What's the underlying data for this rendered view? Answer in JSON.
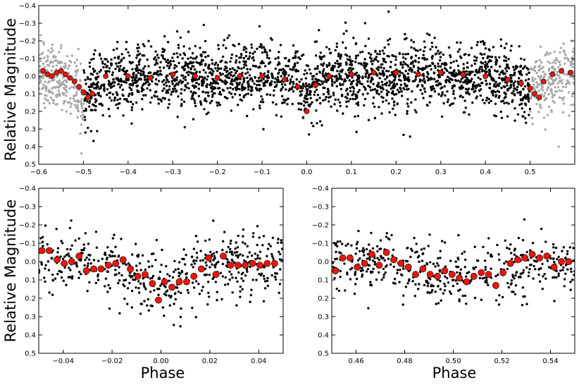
{
  "figure": {
    "ylabel": "Relative Magnitude",
    "xlabel": "Phase"
  },
  "colors": {
    "points": "#000000",
    "wrapped_points": "#a8a8a8",
    "binned": "#e8160c"
  },
  "chart_data": [
    {
      "type": "scatter",
      "name": "full-phase",
      "xlim": [
        -0.6,
        0.6
      ],
      "ylim": [
        0.5,
        -0.4
      ],
      "xticks": [
        -0.6,
        -0.5,
        -0.4,
        -0.3,
        -0.2,
        -0.1,
        0.0,
        0.1,
        0.2,
        0.3,
        0.4,
        0.5
      ],
      "xtick_labels": [
        "−0.6",
        "−0.5",
        "−0.4",
        "−0.3",
        "−0.2",
        "−0.1",
        "0.0",
        "0.1",
        "0.2",
        "0.3",
        "0.4",
        "0.5"
      ],
      "yticks": [
        -0.4,
        -0.3,
        -0.2,
        -0.1,
        0.0,
        0.1,
        0.2,
        0.3,
        0.4,
        0.5
      ],
      "ytick_labels": [
        "−0.4",
        "−0.3",
        "−0.2",
        "−0.1",
        "0.0",
        "0.1",
        "0.2",
        "0.3",
        "0.4",
        "0.5"
      ],
      "ylabel": "Relative Magnitude",
      "xlabel": "",
      "series": [
        {
          "name": "observations",
          "style": "small-black-dots",
          "x_range": [
            -0.5,
            0.5
          ],
          "approx_count": 2300,
          "mean_y": 0.0,
          "scatter_sd": 0.09
        },
        {
          "name": "wrapped-observations",
          "style": "small-gray-dots",
          "x_ranges": [
            [
              -0.6,
              -0.5
            ],
            [
              0.5,
              0.6
            ]
          ],
          "approx_count": 480,
          "mean_y": 0.0,
          "scatter_sd": 0.09
        },
        {
          "name": "binned-means",
          "style": "red-circles",
          "x": [
            -0.59,
            -0.58,
            -0.57,
            -0.56,
            -0.55,
            -0.54,
            -0.53,
            -0.52,
            -0.51,
            -0.5,
            -0.49,
            -0.48,
            -0.45,
            -0.4,
            -0.35,
            -0.3,
            -0.25,
            -0.2,
            -0.15,
            -0.1,
            -0.05,
            -0.02,
            0.0,
            0.02,
            0.05,
            0.1,
            0.15,
            0.2,
            0.25,
            0.3,
            0.35,
            0.4,
            0.45,
            0.48,
            0.5,
            0.51,
            0.52,
            0.53,
            0.55,
            0.57,
            0.59
          ],
          "y": [
            -0.03,
            -0.01,
            0.0,
            -0.02,
            -0.03,
            -0.01,
            0.01,
            0.03,
            0.06,
            0.09,
            0.12,
            0.1,
            0.0,
            0.0,
            0.01,
            -0.01,
            0.0,
            0.01,
            0.0,
            0.0,
            0.02,
            0.06,
            0.2,
            0.05,
            0.0,
            -0.01,
            -0.02,
            -0.02,
            -0.01,
            -0.02,
            -0.01,
            0.0,
            0.02,
            0.04,
            0.07,
            0.1,
            0.12,
            0.03,
            -0.01,
            -0.03,
            -0.02
          ]
        }
      ]
    },
    {
      "type": "scatter",
      "name": "primary-zoom",
      "xlim": [
        -0.05,
        0.05
      ],
      "ylim": [
        0.5,
        -0.4
      ],
      "xticks": [
        -0.04,
        -0.02,
        0.0,
        0.02,
        0.04
      ],
      "xtick_labels": [
        "−0.04",
        "−0.02",
        "0.00",
        "0.02",
        "0.04"
      ],
      "yticks": [
        -0.4,
        -0.3,
        -0.2,
        -0.1,
        0.0,
        0.1,
        0.2,
        0.3,
        0.4,
        0.5
      ],
      "ytick_labels": [
        "−0.4",
        "−0.3",
        "−0.2",
        "−0.1",
        "0.0",
        "0.1",
        "0.2",
        "0.3",
        "0.4",
        "0.5"
      ],
      "ylabel": "Relative Magnitude",
      "xlabel": "Phase",
      "series": [
        {
          "name": "observations",
          "style": "small-black-dots",
          "x_range": [
            -0.05,
            0.05
          ],
          "approx_count": 520
        },
        {
          "name": "binned-means",
          "style": "red-circles",
          "x": [
            -0.0487,
            -0.0457,
            -0.0425,
            -0.0395,
            -0.0365,
            -0.0335,
            -0.0305,
            -0.0275,
            -0.0245,
            -0.0215,
            -0.0185,
            -0.0155,
            -0.0125,
            -0.0095,
            -0.0065,
            -0.0035,
            -0.001,
            0.0015,
            0.0045,
            0.0075,
            0.0105,
            0.0135,
            0.0165,
            0.0195,
            0.0225,
            0.0255,
            0.0285,
            0.0315,
            0.0345,
            0.0375,
            0.0405,
            0.0435,
            0.0465
          ],
          "y": [
            -0.06,
            -0.06,
            -0.01,
            0.01,
            0.0,
            -0.03,
            0.05,
            0.04,
            0.04,
            0.02,
            0.01,
            -0.01,
            0.04,
            0.08,
            0.07,
            0.12,
            0.21,
            0.11,
            0.14,
            0.11,
            0.11,
            0.08,
            0.04,
            -0.02,
            0.07,
            -0.03,
            0.02,
            0.02,
            0.02,
            0.01,
            0.02,
            0.01,
            0.01
          ]
        }
      ]
    },
    {
      "type": "scatter",
      "name": "secondary-zoom",
      "xlim": [
        0.45,
        0.55
      ],
      "ylim": [
        0.5,
        -0.4
      ],
      "xticks": [
        0.46,
        0.48,
        0.5,
        0.52,
        0.54
      ],
      "xtick_labels": [
        "0.46",
        "0.48",
        "0.50",
        "0.52",
        "0.54"
      ],
      "yticks": [
        -0.4,
        -0.3,
        -0.2,
        -0.1,
        0.0,
        0.1,
        0.2,
        0.3,
        0.4,
        0.5
      ],
      "ytick_labels": [
        "−0.4",
        "−0.3",
        "−0.2",
        "−0.1",
        "0.0",
        "0.1",
        "0.2",
        "0.3",
        "0.4",
        "0.5"
      ],
      "ylabel": "",
      "xlabel": "Phase",
      "series": [
        {
          "name": "observations",
          "style": "small-black-dots",
          "x_range": [
            0.45,
            0.55
          ],
          "approx_count": 480
        },
        {
          "name": "binned-means",
          "style": "red-circles",
          "x": [
            0.4515,
            0.4545,
            0.4575,
            0.4605,
            0.4635,
            0.4665,
            0.4695,
            0.4725,
            0.4755,
            0.4785,
            0.4815,
            0.4845,
            0.4875,
            0.4905,
            0.4935,
            0.4965,
            0.4995,
            0.5025,
            0.5055,
            0.5085,
            0.5115,
            0.5145,
            0.5175,
            0.5205,
            0.5235,
            0.5265,
            0.5295,
            0.5325,
            0.5355,
            0.5385,
            0.5415,
            0.5445,
            0.5475
          ],
          "y": [
            0.05,
            -0.02,
            -0.02,
            0.03,
            0.01,
            -0.04,
            0.02,
            -0.05,
            -0.01,
            0.01,
            0.03,
            0.07,
            0.04,
            0.07,
            0.08,
            0.05,
            0.07,
            0.09,
            0.11,
            0.08,
            0.06,
            0.07,
            0.13,
            0.06,
            0.01,
            -0.01,
            -0.02,
            -0.04,
            -0.02,
            -0.03,
            0.03,
            0.0,
            0.0
          ]
        }
      ]
    }
  ]
}
